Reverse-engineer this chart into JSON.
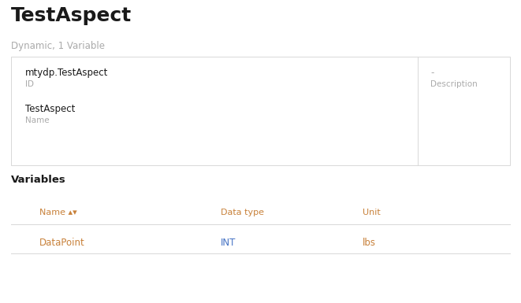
{
  "title": "TestAspect",
  "subtitle": "Dynamic, 1 Variable",
  "card_id_value": "mtydp.TestAspect",
  "card_id_label": "ID",
  "card_name_value": "TestAspect",
  "card_name_label": "Name",
  "card_desc_value": "-",
  "card_desc_label": "Description",
  "section_title": "Variables",
  "table_headers": [
    "Name ▴▾",
    "Data type",
    "Unit"
  ],
  "table_row": [
    "DataPoint",
    "INT",
    "lbs"
  ],
  "bg_color": "#ffffff",
  "card_bg": "#ffffff",
  "card_border": "#d8d8d8",
  "title_color": "#1a1a1a",
  "subtitle_color": "#aaaaaa",
  "label_color": "#aaaaaa",
  "value_color": "#1a1a1a",
  "header_color": "#c8813a",
  "row_name_color": "#c8813a",
  "row_int_color": "#4472c4",
  "row_unit_color": "#c8813a",
  "section_title_color": "#1a1a1a",
  "divider_color": "#d8d8d8",
  "title_fontsize": 18,
  "subtitle_fontsize": 8.5,
  "card_value_fontsize": 8.5,
  "card_label_fontsize": 7.5,
  "section_title_fontsize": 9.5,
  "table_header_fontsize": 8,
  "table_row_fontsize": 8.5,
  "fig_width": 6.61,
  "fig_height": 3.85,
  "dpi": 100
}
